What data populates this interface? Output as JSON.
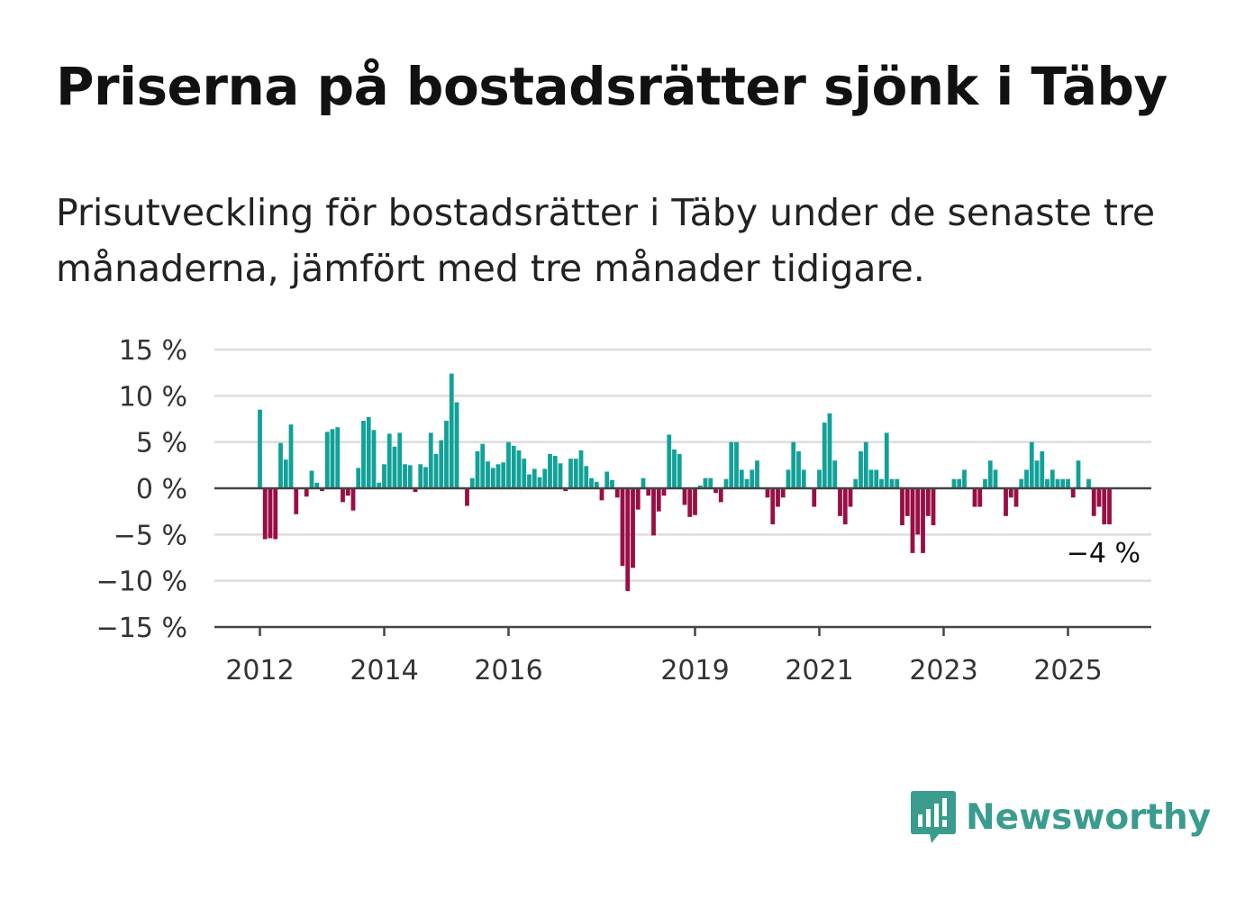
{
  "title": "Priserna på bostadsrätter sjönk i Täby",
  "subtitle": "Prisutveckling för bostadsrätter i Täby under de senaste tre månaderna, jämfört med tre månader tidigare.",
  "brand": {
    "name": "Newsworthy",
    "icon": "newsworthy-chart-bubble-icon",
    "color": "#3a9c8f"
  },
  "colors": {
    "positive": "#12a198",
    "negative": "#990e44",
    "grid": "#dddddd",
    "axis": "#444444"
  },
  "chart_data": {
    "type": "bar",
    "x_start": "2012-01",
    "x_ticks": [
      "2012",
      "2014",
      "2016",
      "2019",
      "2021",
      "2023",
      "2025"
    ],
    "y_ticks": [
      "15 %",
      "10 %",
      "5 %",
      "0 %",
      "−5 %",
      "−10 %",
      "−15 %"
    ],
    "ylim": [
      -15,
      15
    ],
    "grid": true,
    "end_label": "−4 %",
    "values": [
      8.5,
      -5.5,
      -5.4,
      -5.5,
      4.9,
      3.1,
      6.9,
      -2.8,
      0,
      -0.9,
      1.9,
      0.6,
      -0.3,
      6.1,
      6.4,
      6.6,
      -1.5,
      -0.8,
      -2.4,
      2.2,
      7.3,
      7.7,
      6.3,
      0.6,
      2.6,
      5.9,
      4.5,
      6.0,
      2.6,
      2.5,
      -0.4,
      2.6,
      2.3,
      6.0,
      3.7,
      5.2,
      7.3,
      12.4,
      9.3,
      0,
      -1.9,
      1.1,
      4.0,
      4.8,
      2.9,
      2.2,
      2.6,
      2.8,
      5.0,
      4.6,
      4.1,
      3.2,
      1.5,
      2.1,
      1.2,
      2.1,
      3.7,
      3.5,
      2.7,
      -0.3,
      3.2,
      3.2,
      4.1,
      2.4,
      1.1,
      0.7,
      -1.3,
      1.8,
      0.9,
      -1.0,
      -8.4,
      -11.1,
      -8.6,
      -2.3,
      1.1,
      -0.8,
      -5.1,
      -2.5,
      -0.8,
      5.8,
      4.2,
      3.7,
      -1.8,
      -3.1,
      -2.9,
      0.3,
      1.1,
      1.1,
      -0.5,
      -1.5,
      1.0,
      5.0,
      5.0,
      2.0,
      1.0,
      2.0,
      3.0,
      0,
      -1.0,
      -3.9,
      -2.0,
      -1.0,
      2.0,
      5.0,
      4.0,
      2.0,
      0,
      -2.0,
      2.0,
      7.1,
      8.1,
      3.0,
      -3.0,
      -3.9,
      -2.0,
      1.0,
      4.0,
      5.0,
      2.0,
      2.0,
      1.0,
      6.0,
      1.0,
      1.0,
      -4.0,
      -3.0,
      -7.0,
      -5.0,
      -7.0,
      -3.0,
      -4.0,
      0,
      0,
      0,
      1.0,
      1.0,
      2.0,
      0,
      -2.0,
      -2.0,
      1.0,
      3.0,
      2.0,
      0,
      -3.0,
      -1.0,
      -2.0,
      1.0,
      2.0,
      5.0,
      3.0,
      4.0,
      1.0,
      2.0,
      1.0,
      1.0,
      1.0,
      -1.0,
      3.0,
      0,
      1.0,
      -3.0,
      -2.0,
      -3.9,
      -3.9
    ]
  }
}
